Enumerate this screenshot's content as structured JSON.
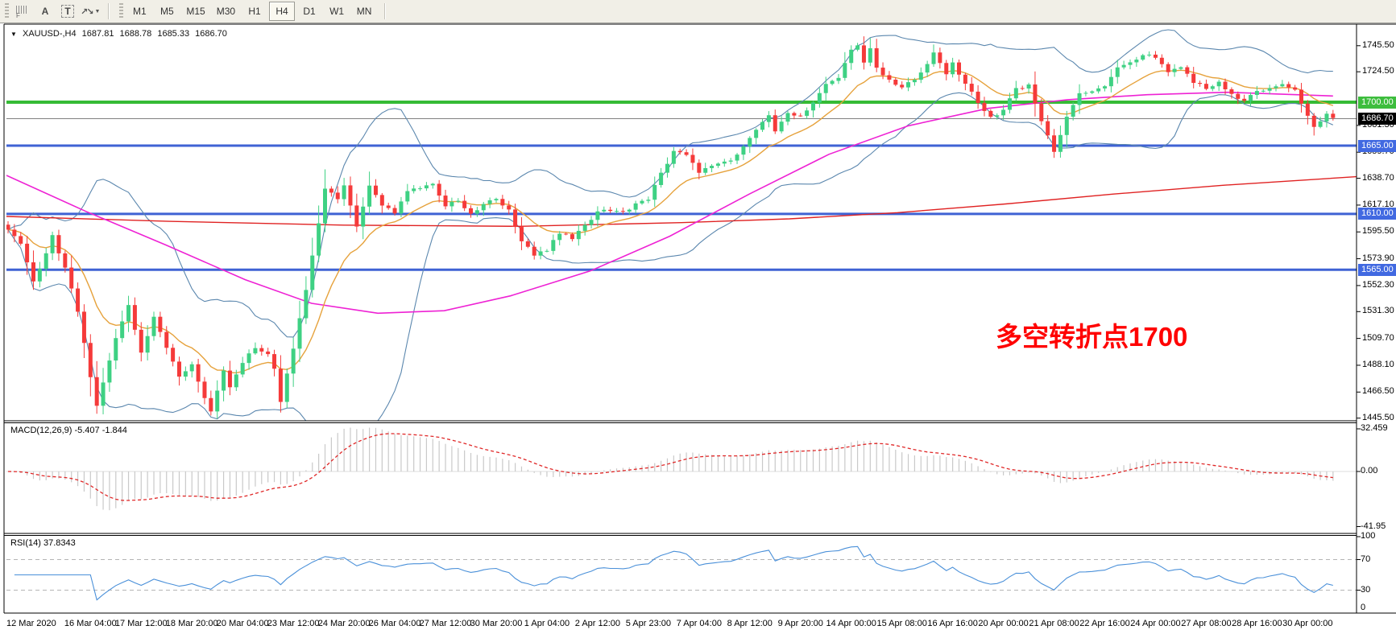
{
  "toolbar": {
    "tools": [
      {
        "id": "template-grid-icon",
        "label": "F"
      },
      {
        "id": "text-label-icon",
        "label": "A"
      },
      {
        "id": "text-box-icon",
        "label": "T"
      },
      {
        "id": "arrow-objects-icon",
        "label": "arrows"
      }
    ],
    "timeframes": [
      "M1",
      "M5",
      "M15",
      "M30",
      "H1",
      "H4",
      "D1",
      "W1",
      "MN"
    ],
    "active_timeframe": "H4"
  },
  "symbol_bar": {
    "dropdown_icon": "▼",
    "symbol": "XAUUSD-,H4",
    "open": "1687.81",
    "high": "1688.78",
    "low": "1685.33",
    "close": "1686.70"
  },
  "annotation": {
    "text": "多空转折点1700",
    "color": "#ff0000"
  },
  "price_axis": {
    "ticks": [
      {
        "label": "1745.50",
        "price": 1745.5
      },
      {
        "label": "1724.50",
        "price": 1724.5
      },
      {
        "label": "1681.30",
        "price": 1681.3
      },
      {
        "label": "1659.70",
        "price": 1659.7
      },
      {
        "label": "1638.70",
        "price": 1638.7
      },
      {
        "label": "1617.10",
        "price": 1617.1
      },
      {
        "label": "1595.50",
        "price": 1595.5
      },
      {
        "label": "1573.90",
        "price": 1573.9
      },
      {
        "label": "1552.30",
        "price": 1552.3
      },
      {
        "label": "1531.30",
        "price": 1531.3
      },
      {
        "label": "1509.70",
        "price": 1509.7
      },
      {
        "label": "1488.10",
        "price": 1488.1
      },
      {
        "label": "1466.50",
        "price": 1466.5
      },
      {
        "label": "1445.50",
        "price": 1445.5
      }
    ],
    "badges": [
      {
        "label": "1700.00",
        "price": 1700.0,
        "bg": "#3dbd3d",
        "fg": "#ffffff"
      },
      {
        "label": "1686.70",
        "price": 1686.7,
        "bg": "#000000",
        "fg": "#ffffff"
      },
      {
        "label": "1665.00",
        "price": 1665.0,
        "bg": "#4169e1",
        "fg": "#ffffff"
      },
      {
        "label": "1610.00",
        "price": 1610.0,
        "bg": "#4169e1",
        "fg": "#ffffff"
      },
      {
        "label": "1565.00",
        "price": 1565.0,
        "bg": "#4169e1",
        "fg": "#ffffff"
      }
    ]
  },
  "hlines": [
    {
      "price": 1700.0,
      "color": "#35bb35",
      "width": 4
    },
    {
      "price": 1686.7,
      "color": "#808080",
      "width": 1
    },
    {
      "price": 1665.0,
      "color": "#3f62d4",
      "width": 3
    },
    {
      "price": 1610.0,
      "color": "#3f62d4",
      "width": 3
    },
    {
      "price": 1565.0,
      "color": "#3f62d4",
      "width": 3
    }
  ],
  "macd_panel": {
    "label": "MACD(12,26,9) -5.407 -1.844",
    "ticks": [
      {
        "label": "32.459",
        "value": 32.459
      },
      {
        "label": "0.00",
        "value": 0
      },
      {
        "label": "-41.95",
        "value": -41.95
      }
    ]
  },
  "rsi_panel": {
    "label": "RSI(14) 37.8343",
    "ticks": [
      {
        "label": "100",
        "value": 100
      },
      {
        "label": "70",
        "value": 70
      },
      {
        "label": "30",
        "value": 30
      },
      {
        "label": "0",
        "value": 0
      }
    ],
    "level_lines": [
      70,
      30
    ]
  },
  "time_axis": {
    "labels": [
      "12 Mar 2020",
      "16 Mar 04:00",
      "17 Mar 12:00",
      "18 Mar 20:00",
      "20 Mar 04:00",
      "23 Mar 12:00",
      "24 Mar 20:00",
      "26 Mar 04:00",
      "27 Mar 12:00",
      "30 Mar 20:00",
      "1 Apr 04:00",
      "2 Apr 12:00",
      "5 Apr 23:00",
      "7 Apr 04:00",
      "8 Apr 12:00",
      "9 Apr 20:00",
      "14 Apr 00:00",
      "15 Apr 08:00",
      "16 Apr 16:00",
      "20 Apr 00:00",
      "21 Apr 08:00",
      "22 Apr 16:00",
      "24 Apr 00:00",
      "27 Apr 08:00",
      "28 Apr 16:00",
      "30 Apr 00:00"
    ],
    "indices": [
      0,
      13,
      21,
      29,
      37,
      45,
      53,
      61,
      69,
      77,
      85,
      93,
      101,
      109,
      117,
      125,
      133,
      141,
      149,
      157,
      165,
      173,
      181,
      189,
      197,
      205
    ]
  },
  "chart_data": {
    "type": "candlestick",
    "symbol": "XAUUSD-",
    "timeframe": "H4",
    "ohlc_current": {
      "open": 1687.81,
      "high": 1688.78,
      "low": 1685.33,
      "close": 1686.7
    },
    "price_axis_range": [
      1445.5,
      1745.5
    ],
    "candle_count": 210,
    "colors": {
      "up": "#3ed183",
      "down": "#f53a3a",
      "bollinger": "#5b87ae",
      "ma_fast": "#e6a23c",
      "ma_mid": "#ee22d4",
      "ma_slow": "#e02222",
      "macd_hist": "#c9c9c9",
      "macd_signal": "#e02828",
      "rsi_line": "#4a90d9"
    },
    "close_anchors": [
      [
        0,
        1598
      ],
      [
        2,
        1585
      ],
      [
        4,
        1555
      ],
      [
        5,
        1566
      ],
      [
        7,
        1592
      ],
      [
        9,
        1566
      ],
      [
        11,
        1532
      ],
      [
        12,
        1506
      ],
      [
        13,
        1478
      ],
      [
        14,
        1455
      ],
      [
        16,
        1492
      ],
      [
        17,
        1509
      ],
      [
        19,
        1536
      ],
      [
        21,
        1497
      ],
      [
        23,
        1527
      ],
      [
        25,
        1502
      ],
      [
        27,
        1478
      ],
      [
        29,
        1488
      ],
      [
        31,
        1462
      ],
      [
        32,
        1452
      ],
      [
        34,
        1483
      ],
      [
        35,
        1470
      ],
      [
        37,
        1490
      ],
      [
        39,
        1503
      ],
      [
        41,
        1497
      ],
      [
        42,
        1486
      ],
      [
        43,
        1459
      ],
      [
        45,
        1502
      ],
      [
        47,
        1548
      ],
      [
        49,
        1603
      ],
      [
        50,
        1631
      ],
      [
        52,
        1621
      ],
      [
        53,
        1632
      ],
      [
        55,
        1600
      ],
      [
        57,
        1634
      ],
      [
        59,
        1616
      ],
      [
        61,
        1611
      ],
      [
        63,
        1628
      ],
      [
        65,
        1631
      ],
      [
        67,
        1633
      ],
      [
        69,
        1616
      ],
      [
        71,
        1621
      ],
      [
        73,
        1610
      ],
      [
        75,
        1618
      ],
      [
        77,
        1623
      ],
      [
        79,
        1613
      ],
      [
        81,
        1588
      ],
      [
        83,
        1577
      ],
      [
        85,
        1581
      ],
      [
        87,
        1595
      ],
      [
        89,
        1591
      ],
      [
        91,
        1601
      ],
      [
        93,
        1612
      ],
      [
        95,
        1613
      ],
      [
        97,
        1611
      ],
      [
        99,
        1618
      ],
      [
        101,
        1622
      ],
      [
        103,
        1643
      ],
      [
        105,
        1660
      ],
      [
        107,
        1657
      ],
      [
        109,
        1644
      ],
      [
        111,
        1649
      ],
      [
        113,
        1651
      ],
      [
        115,
        1657
      ],
      [
        117,
        1671
      ],
      [
        119,
        1685
      ],
      [
        120,
        1690
      ],
      [
        121,
        1676
      ],
      [
        123,
        1691
      ],
      [
        125,
        1689
      ],
      [
        127,
        1699
      ],
      [
        129,
        1715
      ],
      [
        131,
        1720
      ],
      [
        133,
        1742
      ],
      [
        134,
        1747
      ],
      [
        135,
        1733
      ],
      [
        136,
        1743
      ],
      [
        137,
        1728
      ],
      [
        139,
        1717
      ],
      [
        141,
        1712
      ],
      [
        143,
        1718
      ],
      [
        145,
        1730
      ],
      [
        146,
        1739
      ],
      [
        148,
        1722
      ],
      [
        149,
        1731
      ],
      [
        151,
        1715
      ],
      [
        153,
        1700
      ],
      [
        155,
        1687
      ],
      [
        157,
        1694
      ],
      [
        159,
        1711
      ],
      [
        161,
        1713
      ],
      [
        163,
        1684
      ],
      [
        165,
        1661
      ],
      [
        167,
        1688
      ],
      [
        169,
        1706
      ],
      [
        171,
        1710
      ],
      [
        173,
        1714
      ],
      [
        175,
        1728
      ],
      [
        177,
        1731
      ],
      [
        179,
        1738
      ],
      [
        181,
        1736
      ],
      [
        183,
        1724
      ],
      [
        185,
        1728
      ],
      [
        187,
        1716
      ],
      [
        189,
        1711
      ],
      [
        191,
        1716
      ],
      [
        193,
        1707
      ],
      [
        195,
        1701
      ],
      [
        197,
        1709
      ],
      [
        199,
        1712
      ],
      [
        201,
        1715
      ],
      [
        203,
        1709
      ],
      [
        205,
        1688
      ],
      [
        206,
        1680
      ],
      [
        207,
        1685
      ],
      [
        208,
        1690
      ],
      [
        209,
        1687
      ]
    ],
    "indicators": {
      "bollinger": {
        "period": 20,
        "deviation": 2
      },
      "ma_fast": {
        "type": "ema",
        "period": 13
      },
      "ma_mid_anchors": [
        [
          0,
          1641
        ],
        [
          0.06,
          1612
        ],
        [
          0.12,
          1585
        ],
        [
          0.18,
          1557
        ],
        [
          0.23,
          1538
        ],
        [
          0.28,
          1530
        ],
        [
          0.33,
          1532
        ],
        [
          0.38,
          1544
        ],
        [
          0.44,
          1564
        ],
        [
          0.5,
          1592
        ],
        [
          0.56,
          1626
        ],
        [
          0.62,
          1658
        ],
        [
          0.68,
          1681
        ],
        [
          0.74,
          1695
        ],
        [
          0.8,
          1702
        ],
        [
          0.86,
          1706
        ],
        [
          0.92,
          1708
        ],
        [
          1,
          1705
        ]
      ],
      "ma_slow_anchors": [
        [
          0,
          1608
        ],
        [
          0.12,
          1604
        ],
        [
          0.25,
          1601
        ],
        [
          0.38,
          1600
        ],
        [
          0.5,
          1603
        ],
        [
          0.58,
          1606
        ],
        [
          0.66,
          1611
        ],
        [
          0.74,
          1618
        ],
        [
          0.82,
          1626
        ],
        [
          0.9,
          1633
        ],
        [
          1,
          1640
        ]
      ],
      "macd": {
        "fast": 12,
        "slow": 26,
        "signal": 9,
        "main_current": -5.407,
        "signal_current": -1.844
      },
      "rsi": {
        "period": 14,
        "current": 37.8343
      }
    }
  }
}
